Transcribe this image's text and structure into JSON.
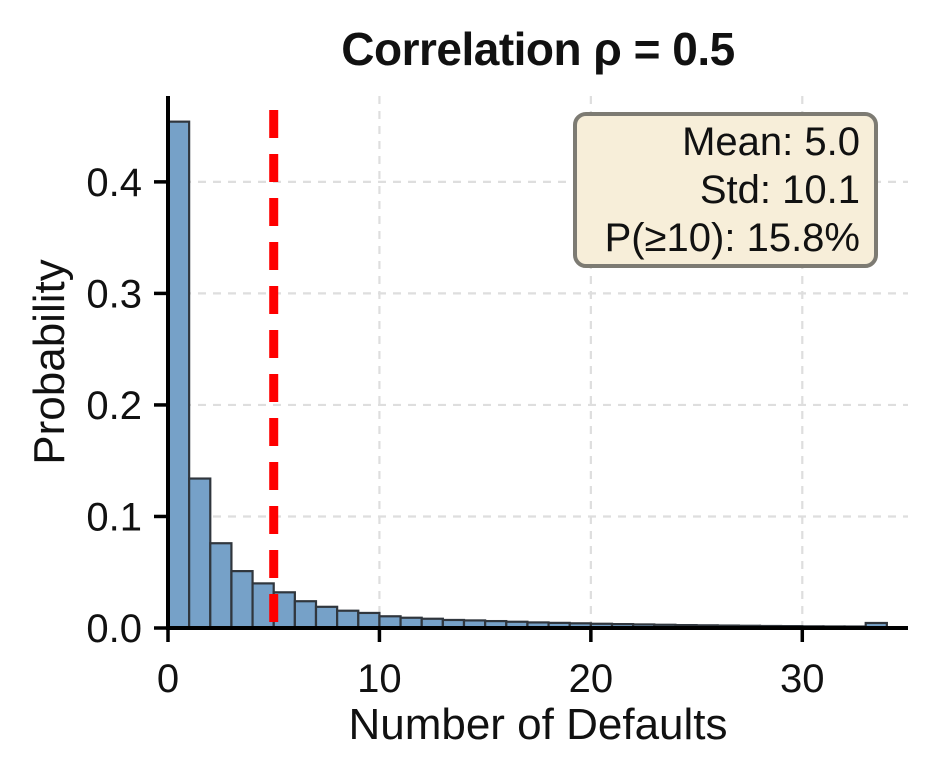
{
  "chart_data": {
    "type": "bar",
    "title": "Correlation ρ = 0.5",
    "xlabel": "Number of Defaults",
    "ylabel": "Probability",
    "bin_start": 0,
    "bin_width": 1,
    "values": [
      0.454,
      0.134,
      0.076,
      0.051,
      0.04,
      0.032,
      0.024,
      0.019,
      0.0155,
      0.0135,
      0.0105,
      0.0092,
      0.0083,
      0.0072,
      0.0068,
      0.0062,
      0.0056,
      0.005,
      0.0046,
      0.0042,
      0.0038,
      0.0035,
      0.0032,
      0.0029,
      0.0026,
      0.0024,
      0.0022,
      0.002,
      0.0018,
      0.0017,
      0.0015,
      0.0014,
      0.0013,
      0.0045
    ],
    "xlim": [
      0,
      35
    ],
    "ylim": [
      0,
      0.477
    ],
    "x_ticks": [
      0,
      10,
      20,
      30
    ],
    "x_tick_labels": [
      "0",
      "10",
      "20",
      "30"
    ],
    "y_ticks": [
      0.0,
      0.1,
      0.2,
      0.3,
      0.4
    ],
    "y_tick_labels": [
      "0.0",
      "0.1",
      "0.2",
      "0.3",
      "0.4"
    ],
    "grid": true,
    "mean_line_x": 5,
    "annotation": {
      "mean": "5.0",
      "std": "10.1",
      "p_ge_10": "15.8%",
      "lines": [
        "Mean: 5.0",
        "Std: 10.1",
        "P(≥10): 15.8%"
      ]
    },
    "colors": {
      "bar_fill": "#76a1c8",
      "bar_edge": "#30363d",
      "mean_line": "#fe0000",
      "grid": "#dedede",
      "axis": "#000000",
      "annotation_bg": "#f7eed9",
      "annotation_border": "#7d7b73",
      "text": "#111111"
    }
  }
}
